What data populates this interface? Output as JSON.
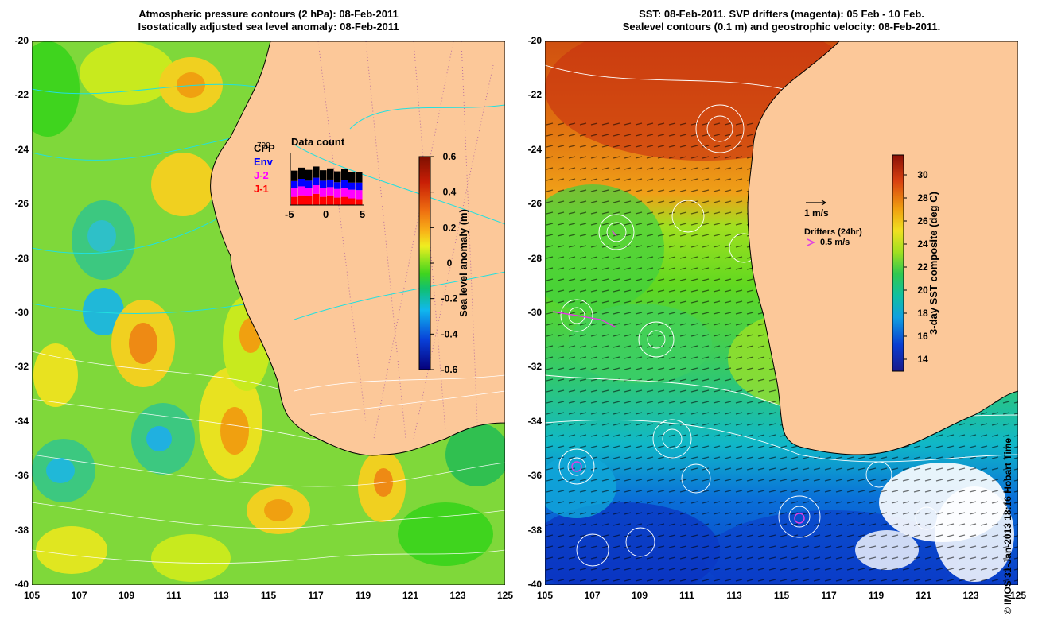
{
  "left_panel": {
    "title_line1": "Atmospheric pressure contours (2 hPa): 08-Feb-2011",
    "title_line2": "Isostatically adjusted sea level anomaly: 08-Feb-2011",
    "colorbar": {
      "label": "Sea level anomaly (m)",
      "ticks": [
        "0.6",
        "0.4",
        "0.2",
        "0",
        "-0.2",
        "-0.4",
        "-0.6"
      ]
    },
    "data_count": {
      "title": "Data count",
      "y_max_label": "700",
      "x_ticks": [
        "-5",
        "0",
        "5"
      ],
      "legend": [
        {
          "label": "CPP",
          "color": "#000000"
        },
        {
          "label": "Env",
          "color": "#0000ff"
        },
        {
          "label": "J-2",
          "color": "#ff00ff"
        },
        {
          "label": "J-1",
          "color": "#ff0000"
        }
      ],
      "stacks": [
        [
          140,
          90,
          120,
          110
        ],
        [
          150,
          100,
          120,
          130
        ],
        [
          145,
          95,
          110,
          120
        ],
        [
          150,
          100,
          115,
          150
        ],
        [
          140,
          95,
          120,
          110
        ],
        [
          150,
          100,
          110,
          130
        ],
        [
          145,
          90,
          115,
          100
        ],
        [
          150,
          100,
          120,
          110
        ],
        [
          140,
          95,
          115,
          90
        ],
        [
          145,
          100,
          120,
          80
        ]
      ]
    }
  },
  "right_panel": {
    "title_line1": "SST: 08-Feb-2011. SVP drifters (magenta): 05 Feb - 10 Feb.",
    "title_line2": "Sealevel contours (0.1 m) and geostrophic velocity: 08-Feb-2011.",
    "colorbar": {
      "label": "3-day SST composite (deg C)",
      "ticks": [
        "30",
        "28",
        "26",
        "24",
        "22",
        "20",
        "18",
        "16",
        "14"
      ]
    },
    "velocity_scale": "1 m/s",
    "drifters_title": "Drifters (24hr)",
    "drifters_scale": "0.5 m/s"
  },
  "axes": {
    "lat_ticks": [
      "-20",
      "-22",
      "-24",
      "-26",
      "-28",
      "-30",
      "-32",
      "-34",
      "-36",
      "-38",
      "-40"
    ],
    "lon_ticks": [
      "105",
      "107",
      "109",
      "111",
      "113",
      "115",
      "117",
      "119",
      "121",
      "123",
      "125"
    ]
  },
  "credit": "© IMOS 31-Jan-2013 18:16 Hobart Time",
  "colors": {
    "land": "#fcc899",
    "sla_scale": [
      "#06007a",
      "#0840d8",
      "#10b8ee",
      "#10c070",
      "#3fd41e",
      "#9ae41e",
      "#f0ee20",
      "#f8b218",
      "#ee6c10",
      "#c81e06",
      "#7e1000"
    ],
    "sst_scale": [
      "#1a1a8a",
      "#0a3cd0",
      "#0aa0e0",
      "#10c0a0",
      "#28c850",
      "#60d820",
      "#c8ec18",
      "#f0d020",
      "#f0a010",
      "#e06010",
      "#b01a08"
    ]
  }
}
